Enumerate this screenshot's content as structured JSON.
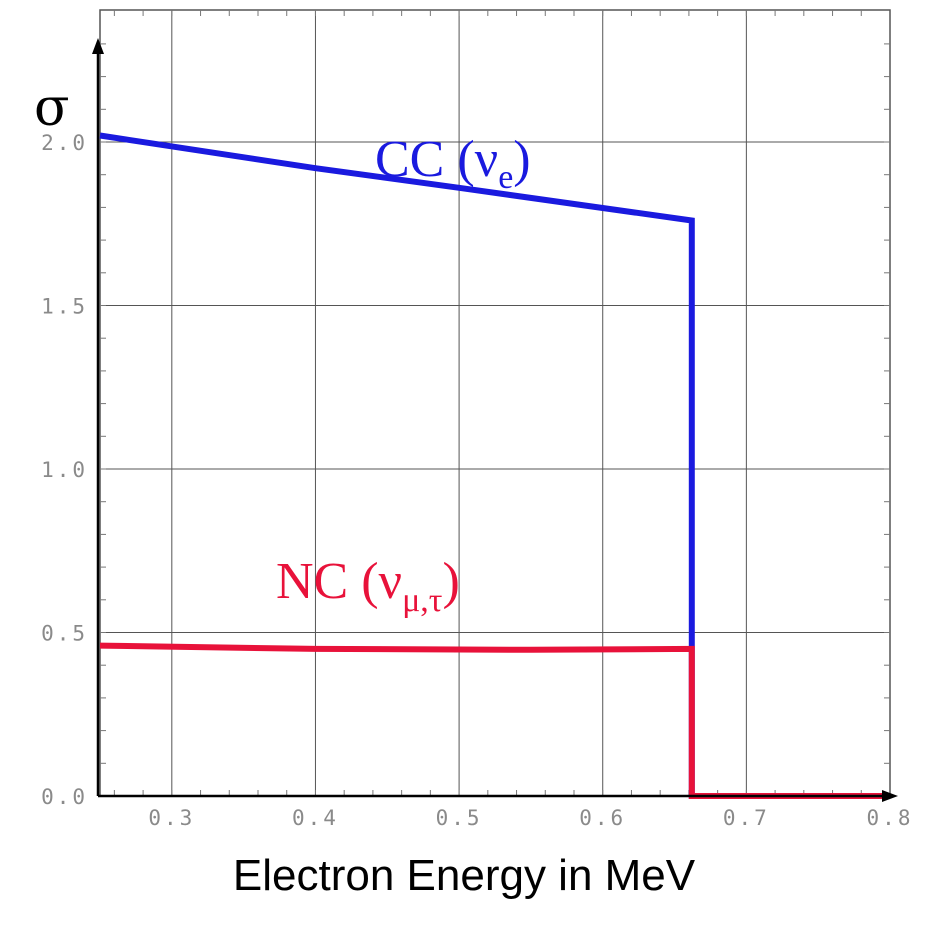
{
  "chart_data": {
    "type": "line",
    "xlabel": "Electron Energy in MeV",
    "ylabel": "σ",
    "xlim": [
      0.25,
      0.8
    ],
    "ylim": [
      0.0,
      2.2
    ],
    "x_ticks": [
      "0.3",
      "0.4",
      "0.5",
      "0.6",
      "0.7",
      "0.8"
    ],
    "y_ticks": [
      "0.0",
      "0.5",
      "1.0",
      "1.5",
      "2.0"
    ],
    "grid": true,
    "series": [
      {
        "name": "CC (νe)",
        "label_main": "CC (ν",
        "label_sub": "e",
        "label_close": ")",
        "color": "#1a1adf",
        "points": [
          [
            0.25,
            2.02
          ],
          [
            0.4,
            1.92
          ],
          [
            0.5,
            1.86
          ],
          [
            0.662,
            1.76
          ],
          [
            0.662,
            0.0
          ],
          [
            0.8,
            0.0
          ]
        ]
      },
      {
        "name": "NC (νμ,τ)",
        "label_main": "NC (ν",
        "label_sub": "μ,τ",
        "label_close": ")",
        "color": "#e8123a",
        "points": [
          [
            0.25,
            0.46
          ],
          [
            0.4,
            0.45
          ],
          [
            0.55,
            0.447
          ],
          [
            0.662,
            0.45
          ],
          [
            0.662,
            0.0
          ],
          [
            0.8,
            0.0
          ]
        ]
      }
    ]
  }
}
